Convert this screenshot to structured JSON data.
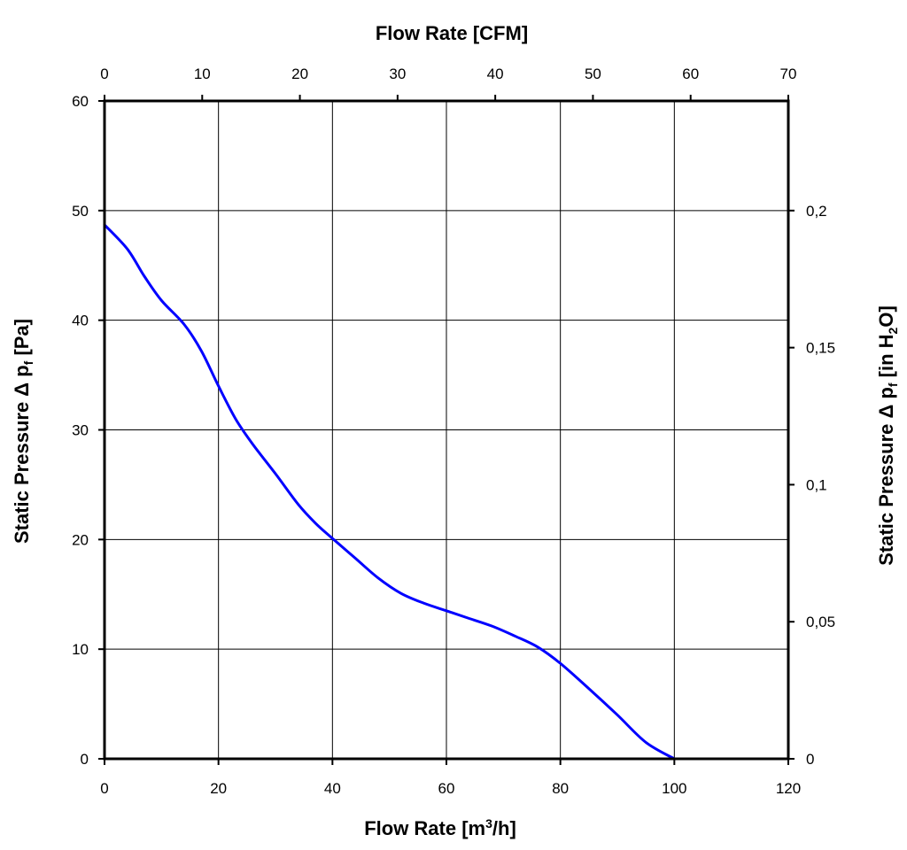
{
  "chart_data": {
    "type": "line",
    "xlabel_bottom": {
      "prefix": "Flow Rate [m",
      "sup": "3",
      "suffix": "/h]"
    },
    "xlabel_top": "Flow Rate [CFM]",
    "ylabel_left": {
      "prefix": "Static Pressure Δ p",
      "sub": "f",
      "suffix": " [Pa]"
    },
    "ylabel_right": {
      "prefix": "Static Pressure Δ p",
      "sub1": "f",
      "mid": " [in H",
      "sub2": "2",
      "suffix": "O]"
    },
    "xlim": [
      0,
      120
    ],
    "ylim": [
      0,
      60
    ],
    "x_ticks": [
      "0",
      "20",
      "40",
      "60",
      "80",
      "100",
      "120"
    ],
    "y_ticks": [
      "0",
      "10",
      "20",
      "30",
      "40",
      "50",
      "60"
    ],
    "top_xlim": [
      0,
      70
    ],
    "top_ticks": [
      "0",
      "10",
      "20",
      "30",
      "40",
      "50",
      "60",
      "70"
    ],
    "right_ylim": [
      0,
      0.24
    ],
    "right_ticks": [
      {
        "value": 0,
        "label": "0"
      },
      {
        "value": 0.05,
        "label": "0,05"
      },
      {
        "value": 0.1,
        "label": "0,1"
      },
      {
        "value": 0.15,
        "label": "0,15"
      },
      {
        "value": 0.2,
        "label": "0,2"
      }
    ],
    "grid": true,
    "line_color": "#0000ff",
    "series": [
      {
        "x": [
          0,
          4,
          7,
          10,
          14,
          17,
          20,
          23,
          26,
          30,
          34,
          37,
          40,
          44,
          48,
          52,
          56,
          60,
          64,
          68,
          72,
          76,
          80,
          85,
          90,
          95,
          100
        ],
        "values": [
          48.7,
          46.5,
          44.0,
          41.8,
          39.6,
          37.2,
          34.0,
          31.0,
          28.7,
          26.0,
          23.2,
          21.5,
          20.1,
          18.3,
          16.5,
          15.1,
          14.2,
          13.5,
          12.8,
          12.1,
          11.2,
          10.2,
          8.7,
          6.4,
          4.0,
          1.5,
          0.0
        ]
      }
    ]
  }
}
